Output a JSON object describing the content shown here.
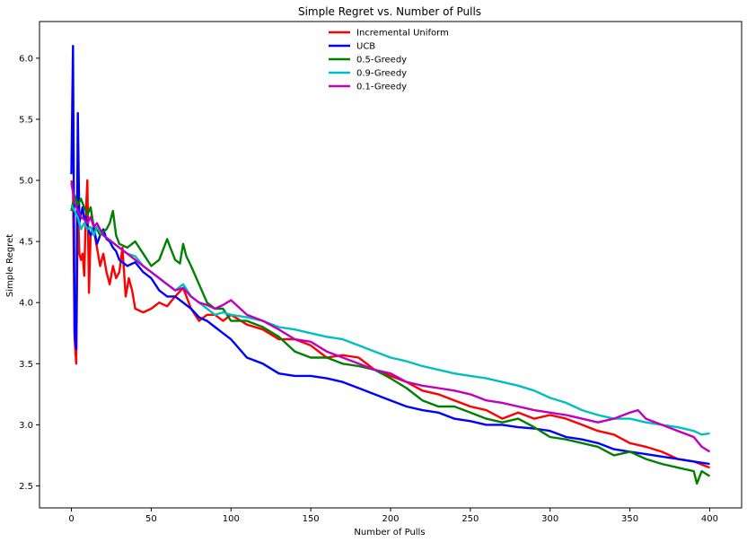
{
  "chart_data": {
    "type": "line",
    "title": "Simple Regret vs. Number of Pulls",
    "xlabel": "Number of Pulls",
    "ylabel": "Simple Regret",
    "xlim": [
      -20,
      420
    ],
    "ylim": [
      2.32,
      6.3
    ],
    "xticks": [
      0,
      50,
      100,
      150,
      200,
      250,
      300,
      350,
      400
    ],
    "yticks": [
      2.5,
      3.0,
      3.5,
      4.0,
      4.5,
      5.0,
      5.5,
      6.0
    ],
    "grid": false,
    "legend": "upper center",
    "series": [
      {
        "name": "Incremental Uniform",
        "color": "#ff0000",
        "x": [
          0,
          1,
          2,
          3,
          4,
          5,
          6,
          7,
          8,
          9,
          10,
          11,
          12,
          14,
          16,
          18,
          20,
          22,
          24,
          26,
          28,
          30,
          32,
          34,
          36,
          38,
          40,
          45,
          50,
          55,
          60,
          65,
          70,
          75,
          80,
          85,
          90,
          95,
          100,
          110,
          120,
          130,
          140,
          150,
          160,
          170,
          180,
          190,
          200,
          210,
          220,
          230,
          240,
          250,
          260,
          270,
          280,
          290,
          300,
          310,
          320,
          330,
          340,
          350,
          360,
          370,
          380,
          390,
          400
        ],
        "y": [
          5.0,
          4.95,
          3.7,
          3.5,
          4.8,
          4.4,
          4.35,
          4.4,
          4.22,
          4.7,
          5.0,
          4.08,
          4.55,
          4.6,
          4.45,
          4.3,
          4.4,
          4.25,
          4.15,
          4.3,
          4.2,
          4.25,
          4.45,
          4.05,
          4.2,
          4.1,
          3.95,
          3.92,
          3.95,
          4.0,
          3.97,
          4.05,
          4.12,
          3.95,
          3.85,
          3.9,
          3.9,
          3.85,
          3.9,
          3.82,
          3.78,
          3.7,
          3.7,
          3.65,
          3.55,
          3.57,
          3.55,
          3.45,
          3.4,
          3.35,
          3.28,
          3.25,
          3.2,
          3.15,
          3.12,
          3.05,
          3.1,
          3.05,
          3.08,
          3.05,
          3.0,
          2.95,
          2.92,
          2.85,
          2.82,
          2.78,
          2.72,
          2.7,
          2.65
        ]
      },
      {
        "name": "UCB",
        "color": "#0000ff",
        "x": [
          0,
          1,
          2,
          3,
          4,
          5,
          6,
          7,
          8,
          9,
          10,
          12,
          14,
          16,
          18,
          20,
          22,
          24,
          26,
          28,
          30,
          35,
          40,
          45,
          50,
          55,
          60,
          65,
          70,
          75,
          80,
          85,
          90,
          95,
          100,
          110,
          120,
          130,
          140,
          150,
          160,
          170,
          180,
          190,
          200,
          210,
          220,
          230,
          240,
          250,
          260,
          270,
          280,
          290,
          300,
          310,
          320,
          330,
          340,
          350,
          360,
          370,
          380,
          390,
          400
        ],
        "y": [
          5.05,
          6.1,
          3.75,
          3.62,
          5.55,
          4.65,
          4.72,
          4.78,
          4.68,
          4.7,
          4.62,
          4.55,
          4.62,
          4.48,
          4.55,
          4.6,
          4.52,
          4.5,
          4.45,
          4.42,
          4.35,
          4.3,
          4.33,
          4.25,
          4.2,
          4.1,
          4.05,
          4.05,
          4.0,
          3.95,
          3.88,
          3.85,
          3.8,
          3.75,
          3.7,
          3.55,
          3.5,
          3.42,
          3.4,
          3.4,
          3.38,
          3.35,
          3.3,
          3.25,
          3.2,
          3.15,
          3.12,
          3.1,
          3.05,
          3.03,
          3.0,
          3.0,
          2.98,
          2.97,
          2.95,
          2.9,
          2.88,
          2.85,
          2.8,
          2.78,
          2.76,
          2.74,
          2.72,
          2.7,
          2.68
        ]
      },
      {
        "name": "0.5-Greedy",
        "color": "#008000",
        "x": [
          0,
          2,
          4,
          6,
          8,
          10,
          12,
          14,
          16,
          18,
          20,
          22,
          24,
          26,
          28,
          30,
          35,
          40,
          45,
          50,
          55,
          60,
          62,
          65,
          68,
          70,
          72,
          75,
          80,
          85,
          90,
          95,
          100,
          110,
          120,
          130,
          140,
          150,
          160,
          170,
          180,
          190,
          200,
          210,
          220,
          230,
          240,
          250,
          260,
          270,
          280,
          290,
          300,
          310,
          320,
          330,
          340,
          350,
          360,
          370,
          380,
          390,
          392,
          395,
          400
        ],
        "y": [
          4.75,
          4.88,
          4.8,
          4.85,
          4.78,
          4.72,
          4.78,
          4.62,
          4.6,
          4.55,
          4.58,
          4.6,
          4.65,
          4.75,
          4.55,
          4.48,
          4.45,
          4.5,
          4.4,
          4.3,
          4.35,
          4.52,
          4.45,
          4.35,
          4.32,
          4.48,
          4.38,
          4.3,
          4.15,
          4.0,
          3.95,
          3.95,
          3.85,
          3.85,
          3.8,
          3.72,
          3.6,
          3.55,
          3.55,
          3.5,
          3.48,
          3.45,
          3.38,
          3.3,
          3.2,
          3.15,
          3.15,
          3.1,
          3.05,
          3.02,
          3.05,
          2.98,
          2.9,
          2.88,
          2.85,
          2.82,
          2.75,
          2.78,
          2.72,
          2.68,
          2.65,
          2.62,
          2.52,
          2.62,
          2.58
        ]
      },
      {
        "name": "0.9-Greedy",
        "color": "#00bfbf",
        "x": [
          0,
          2,
          4,
          6,
          8,
          10,
          12,
          14,
          16,
          18,
          20,
          25,
          30,
          35,
          40,
          45,
          50,
          55,
          60,
          65,
          70,
          75,
          80,
          85,
          90,
          95,
          100,
          110,
          120,
          130,
          140,
          150,
          160,
          170,
          180,
          190,
          200,
          210,
          220,
          230,
          240,
          250,
          260,
          270,
          280,
          290,
          300,
          310,
          320,
          330,
          340,
          350,
          360,
          370,
          380,
          390,
          395,
          400
        ],
        "y": [
          4.8,
          4.75,
          4.7,
          4.6,
          4.65,
          4.6,
          4.62,
          4.55,
          4.62,
          4.58,
          4.55,
          4.5,
          4.45,
          4.4,
          4.38,
          4.3,
          4.25,
          4.2,
          4.15,
          4.1,
          4.15,
          4.05,
          4.0,
          3.95,
          3.9,
          3.92,
          3.9,
          3.88,
          3.85,
          3.8,
          3.78,
          3.75,
          3.72,
          3.7,
          3.65,
          3.6,
          3.55,
          3.52,
          3.48,
          3.45,
          3.42,
          3.4,
          3.38,
          3.35,
          3.32,
          3.28,
          3.22,
          3.18,
          3.12,
          3.08,
          3.05,
          3.05,
          3.02,
          3.0,
          2.98,
          2.95,
          2.92,
          2.93
        ]
      },
      {
        "name": "0.1-Greedy",
        "color": "#bf00bf",
        "x": [
          0,
          2,
          4,
          6,
          8,
          10,
          12,
          14,
          16,
          18,
          20,
          25,
          30,
          35,
          40,
          45,
          50,
          55,
          60,
          65,
          70,
          75,
          80,
          85,
          90,
          95,
          100,
          110,
          120,
          130,
          140,
          150,
          160,
          170,
          180,
          190,
          200,
          210,
          220,
          230,
          240,
          250,
          260,
          270,
          280,
          290,
          300,
          310,
          320,
          330,
          340,
          350,
          355,
          360,
          370,
          380,
          390,
          395,
          400
        ],
        "y": [
          4.98,
          4.82,
          4.75,
          4.7,
          4.68,
          4.65,
          4.7,
          4.62,
          4.65,
          4.6,
          4.55,
          4.5,
          4.45,
          4.4,
          4.35,
          4.3,
          4.25,
          4.2,
          4.15,
          4.1,
          4.12,
          4.05,
          4.0,
          3.98,
          3.95,
          3.98,
          4.02,
          3.9,
          3.85,
          3.78,
          3.7,
          3.68,
          3.6,
          3.55,
          3.5,
          3.45,
          3.42,
          3.35,
          3.32,
          3.3,
          3.28,
          3.25,
          3.2,
          3.18,
          3.15,
          3.12,
          3.1,
          3.08,
          3.05,
          3.02,
          3.05,
          3.1,
          3.12,
          3.05,
          3.0,
          2.95,
          2.9,
          2.82,
          2.78
        ]
      }
    ]
  }
}
